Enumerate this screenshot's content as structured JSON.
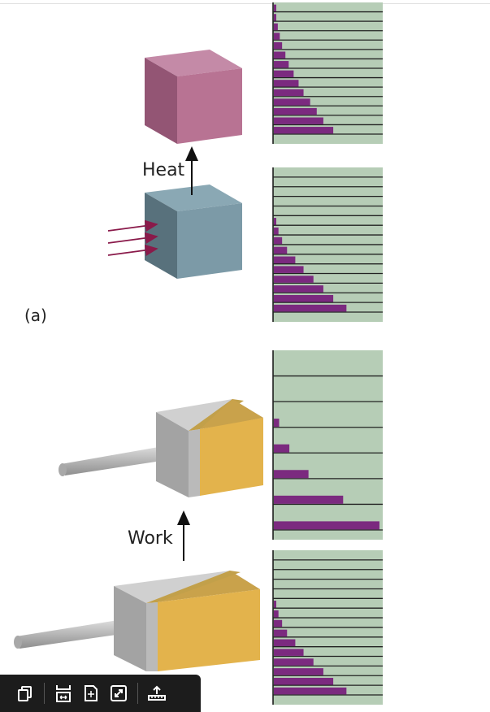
{
  "labels": {
    "part_a": "(a)",
    "heat": "Heat",
    "work": "Work"
  },
  "colors": {
    "level_bg": "#b6cdb6",
    "bar": "#7b2a7f",
    "hot_cube": "#b87393",
    "cold_cube": "#7c9aa7",
    "piston_gold": "#e3b34c",
    "piston_gray": "#9c9c9c",
    "arrow_red": "#8a1a4a"
  },
  "level_diagrams": [
    {
      "id": "heat-top",
      "levels": 14,
      "populations": [
        0.18,
        0.15,
        0.13,
        0.11,
        0.09,
        0.075,
        0.06,
        0.045,
        0.035,
        0.025,
        0.018,
        0.012,
        0.007,
        0.004
      ]
    },
    {
      "id": "heat-bottom",
      "levels": 15,
      "populations": [
        0.22,
        0.18,
        0.15,
        0.12,
        0.09,
        0.065,
        0.04,
        0.025,
        0.014,
        0.006,
        0,
        0,
        0,
        0,
        0
      ]
    },
    {
      "id": "work-top",
      "levels": 7,
      "populations": [
        0.32,
        0.21,
        0.105,
        0.047,
        0.016,
        0,
        0
      ]
    },
    {
      "id": "work-bottom",
      "levels": 15,
      "populations": [
        0.22,
        0.18,
        0.15,
        0.12,
        0.09,
        0.065,
        0.04,
        0.025,
        0.014,
        0.006,
        0,
        0,
        0,
        0,
        0
      ]
    }
  ],
  "toolbar": {
    "buttons": [
      {
        "name": "copy-icon"
      },
      {
        "name": "fit-width-icon"
      },
      {
        "name": "fit-page-icon"
      },
      {
        "name": "expand-icon"
      },
      {
        "name": "upload-icon"
      }
    ]
  }
}
